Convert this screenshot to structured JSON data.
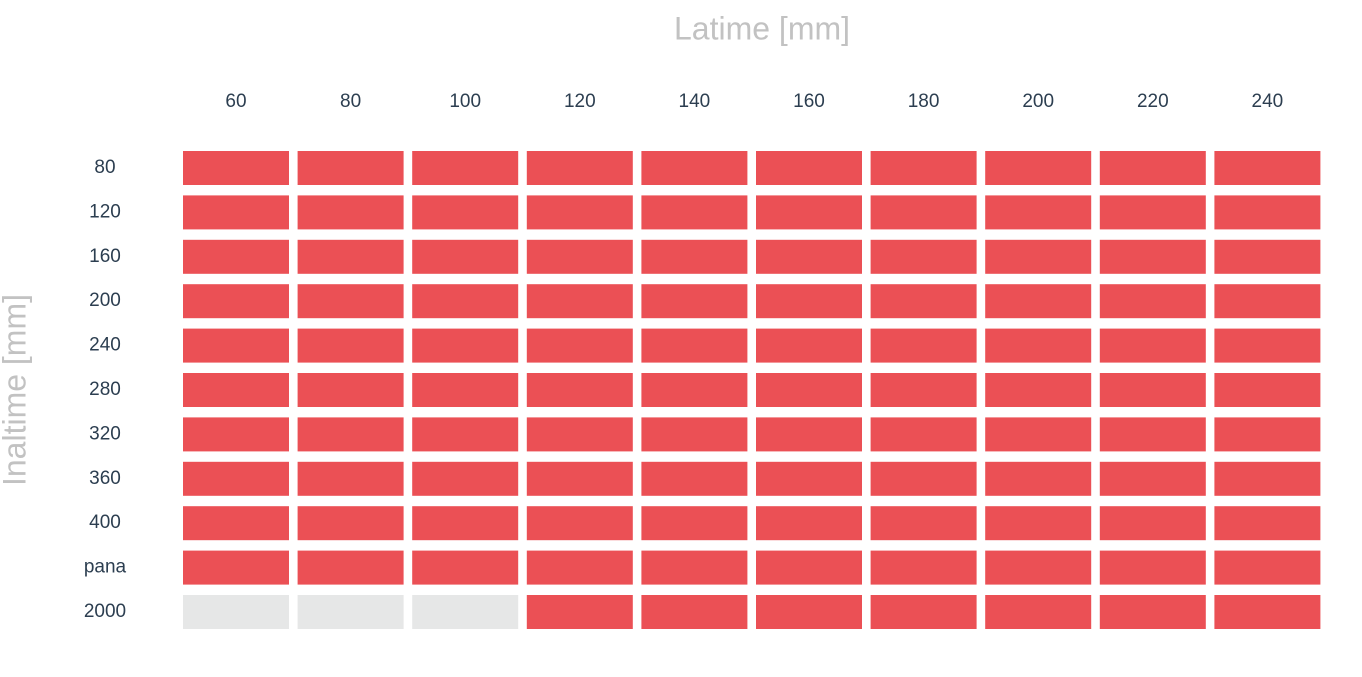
{
  "header": {
    "title": "Latime [mm]",
    "row_axis_title": "Inaltime [mm]"
  },
  "columns": [
    "60",
    "80",
    "100",
    "120",
    "140",
    "160",
    "180",
    "200",
    "220",
    "240"
  ],
  "rows": [
    {
      "label": "80",
      "cells": [
        "#eb5055",
        "#eb5055",
        "#eb5055",
        "#eb5055",
        "#eb5055",
        "#eb5055",
        "#eb5055",
        "#eb5055",
        "#eb5055",
        "#eb5055"
      ]
    },
    {
      "label": "120",
      "cells": [
        "#eb5055",
        "#eb5055",
        "#eb5055",
        "#eb5055",
        "#eb5055",
        "#eb5055",
        "#eb5055",
        "#eb5055",
        "#eb5055",
        "#eb5055"
      ]
    },
    {
      "label": "160",
      "cells": [
        "#eb5055",
        "#eb5055",
        "#eb5055",
        "#eb5055",
        "#eb5055",
        "#eb5055",
        "#eb5055",
        "#eb5055",
        "#eb5055",
        "#eb5055"
      ]
    },
    {
      "label": "200",
      "cells": [
        "#eb5055",
        "#eb5055",
        "#eb5055",
        "#eb5055",
        "#eb5055",
        "#eb5055",
        "#eb5055",
        "#eb5055",
        "#eb5055",
        "#eb5055"
      ]
    },
    {
      "label": "240",
      "cells": [
        "#eb5055",
        "#eb5055",
        "#eb5055",
        "#eb5055",
        "#eb5055",
        "#eb5055",
        "#eb5055",
        "#eb5055",
        "#eb5055",
        "#eb5055"
      ]
    },
    {
      "label": "280",
      "cells": [
        "#eb5055",
        "#eb5055",
        "#eb5055",
        "#eb5055",
        "#eb5055",
        "#eb5055",
        "#eb5055",
        "#eb5055",
        "#eb5055",
        "#eb5055"
      ]
    },
    {
      "label": "320",
      "cells": [
        "#eb5055",
        "#eb5055",
        "#eb5055",
        "#eb5055",
        "#eb5055",
        "#eb5055",
        "#eb5055",
        "#eb5055",
        "#eb5055",
        "#eb5055"
      ]
    },
    {
      "label": "360",
      "cells": [
        "#eb5055",
        "#eb5055",
        "#eb5055",
        "#eb5055",
        "#eb5055",
        "#eb5055",
        "#eb5055",
        "#eb5055",
        "#eb5055",
        "#eb5055"
      ]
    },
    {
      "label": "400",
      "cells": [
        "#eb5055",
        "#eb5055",
        "#eb5055",
        "#eb5055",
        "#eb5055",
        "#eb5055",
        "#eb5055",
        "#eb5055",
        "#eb5055",
        "#eb5055"
      ]
    },
    {
      "label": "pana",
      "cells": [
        "#eb5055",
        "#eb5055",
        "#eb5055",
        "#eb5055",
        "#eb5055",
        "#eb5055",
        "#eb5055",
        "#eb5055",
        "#eb5055",
        "#eb5055"
      ]
    },
    {
      "label": "2000",
      "cells": [
        "#e6e7e7",
        "#e6e7e7",
        "#e6e7e7",
        "#eb5055",
        "#eb5055",
        "#eb5055",
        "#eb5055",
        "#eb5055",
        "#eb5055",
        "#eb5055"
      ]
    }
  ]
}
